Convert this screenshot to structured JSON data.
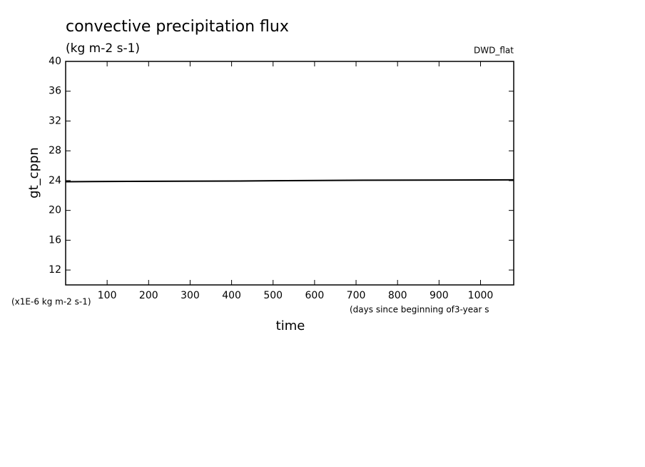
{
  "chart_data": {
    "type": "line",
    "title": "convective precipitation flux",
    "subtitle": "(kg m-2 s-1)",
    "run_label": "DWD_flat",
    "y_label": "gt_cppn",
    "y_unit_note": "(x1E-6 kg m-2 s-1)",
    "x_label": "time",
    "x_unit_note": "(days since beginning of3-year s",
    "x": [
      0,
      150,
      420,
      720,
      1080
    ],
    "series": [
      {
        "color": "#000000",
        "values": [
          23.85,
          23.9,
          23.95,
          24.05,
          24.1
        ]
      }
    ],
    "xlim": [
      0,
      1080
    ],
    "xticks": [
      100,
      200,
      300,
      400,
      500,
      600,
      700,
      800,
      900,
      1000
    ],
    "ylim": [
      10,
      40
    ],
    "yticks": [
      12,
      16,
      20,
      24,
      28,
      32,
      36,
      40
    ]
  }
}
